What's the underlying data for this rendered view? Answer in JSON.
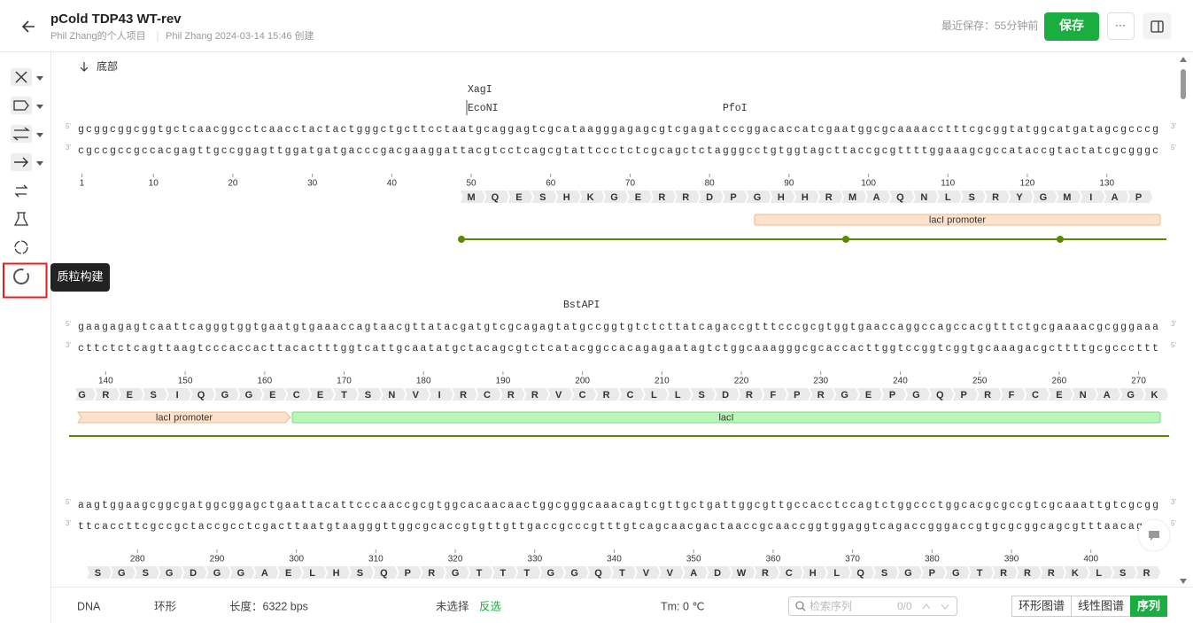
{
  "header": {
    "title": "pCold TDP43 WT-rev",
    "project": "Phil Zhang的个人项目",
    "created": "Phil Zhang 2024-03-14 15:46 创建",
    "saved": "最近保存：55分钟前",
    "save": "保存",
    "more": "···"
  },
  "sidebar": {
    "tooltip": "质粒构建"
  },
  "sequence": {
    "bottom_link": "底部",
    "five_prime": "5'",
    "three_prime": "3'",
    "blocks": [
      {
        "enzymes": [
          "XagI",
          "EcoNI",
          "PfoI"
        ],
        "top": "gcggcggcggtgctcaacggcctcaacctactactgggctgcttcctaatgcaggagtcgcataagggagagcgtcgagatcccggacaccatcgaatggcgcaaaacctttcgcggtatggcatgatagcgcccg",
        "bottom": "cgccgccgccacgagttgccggagttggatgatgacccgacgaaggattacgtcctcagcgtattccctctcgcagctctagggcctgtggtagcttaccgcgttttggaaagcgccataccgtactatcgcgggc",
        "ticks": [
          1,
          10,
          20,
          30,
          40,
          50,
          60,
          70,
          80,
          90,
          100,
          110,
          120,
          130
        ],
        "aa": [
          "M",
          "Q",
          "E",
          "S",
          "H",
          "K",
          "G",
          "E",
          "R",
          "R",
          "D",
          "P",
          "G",
          "H",
          "H",
          "R",
          "M",
          "A",
          "Q",
          "N",
          "L",
          "S",
          "R",
          "Y",
          "G",
          "M",
          "I",
          "A",
          "P"
        ],
        "features": [
          "lacI promoter"
        ]
      },
      {
        "enzymes": [
          "BstAPI"
        ],
        "top": "gaagagagtcaattcagggtggtgaatgtgaaaccagtaacgttatacgatgtcgcagagtatgccggtgtctcttatcagaccgtttcccgcgtggtgaaccaggccagccacgtttctgcgaaaacgcgggaaa",
        "bottom": "cttctctcagttaagtcccaccacttacactttggtcattgcaatatgctacagcgtctcatacggccacagagaatagtctggcaaagggcgcaccacttggtccggtcggtgcaaagacgcttttgcgcccttt",
        "ticks": [
          140,
          150,
          160,
          170,
          180,
          190,
          200,
          210,
          220,
          230,
          240,
          250,
          260,
          270
        ],
        "aa": [
          "G",
          "R",
          "E",
          "S",
          "I",
          "Q",
          "G",
          "G",
          "E",
          "C",
          "E",
          "T",
          "S",
          "N",
          "V",
          "I",
          "R",
          "C",
          "R",
          "R",
          "V",
          "C",
          "R",
          "C",
          "L",
          "L",
          "S",
          "D",
          "R",
          "F",
          "P",
          "R",
          "G",
          "E",
          "P",
          "G",
          "Q",
          "P",
          "R",
          "F",
          "C",
          "E",
          "N",
          "A",
          "G",
          "K"
        ],
        "features": [
          "lacI promoter",
          "lacI"
        ]
      },
      {
        "enzymes": [],
        "top": "aagtggaagcggcgatggcggagctgaattacattcccaaccgcgtggcacaacaactggcgggcaaacagtcgttgctgattggcgttgccacctccagtctggccctggcacgcgccgtcgcaaattgtcgcgg",
        "bottom": "ttcaccttcgccgctaccgcctcgacttaatgtaagggttggcgcaccgtgttgttgaccgcccgtttgtcagcaacgactaaccgcaaccggtggaggtcagaccgggaccgtgcgcggcagcgtttaacagcc",
        "ticks": [
          280,
          290,
          300,
          310,
          320,
          330,
          340,
          350,
          360,
          370,
          380,
          390,
          400
        ],
        "aa": [
          "S",
          "G",
          "S",
          "G",
          "D",
          "G",
          "G",
          "A",
          "E",
          "L",
          "H",
          "S",
          "Q",
          "P",
          "R",
          "G",
          "T",
          "T",
          "T",
          "G",
          "G",
          "Q",
          "T",
          "V",
          "V",
          "A",
          "D",
          "W",
          "R",
          "C",
          "H",
          "L",
          "Q",
          "S",
          "G",
          "P",
          "G",
          "T",
          "R",
          "R",
          "R",
          "K",
          "L",
          "S",
          "R"
        ],
        "features": []
      }
    ]
  },
  "footer": {
    "molecule": "DNA",
    "topology": "环形",
    "length": "长度：6322 bps",
    "selection": "未选择",
    "invert": "反选",
    "tm": "Tm: 0 ℃",
    "search": "检索序列",
    "count": "0/0",
    "tabs": [
      "环形图谱",
      "线性图谱",
      "序列"
    ]
  }
}
